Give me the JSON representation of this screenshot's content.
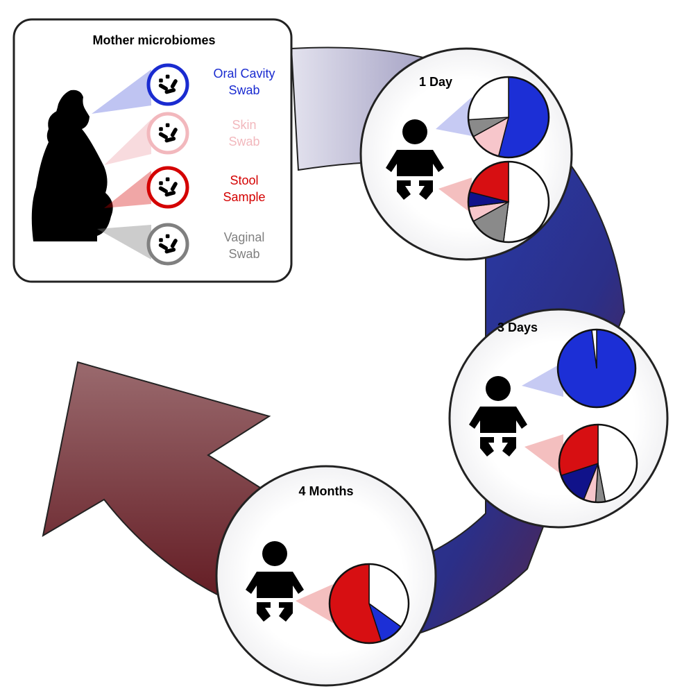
{
  "panel": {
    "title": "Mother microbiomes",
    "sources": [
      {
        "line1": "Oral Cavity",
        "line2": "Swab",
        "color": "#1a2bd0",
        "key": "oral"
      },
      {
        "line1": "Skin",
        "line2": "Swab",
        "color": "#f2b8bd",
        "key": "skin"
      },
      {
        "line1": "Stool",
        "line2": "Sample",
        "color": "#d40000",
        "key": "stool"
      },
      {
        "line1": "Vaginal",
        "line2": "Swab",
        "color": "#808080",
        "key": "vaginal"
      }
    ]
  },
  "timepoints": [
    {
      "label": "1 Day"
    },
    {
      "label": "3 Days"
    },
    {
      "label": "4 Months"
    }
  ],
  "colors": {
    "oral": "#1c2fd6",
    "skin": "#f7c6cb",
    "stool": "#d70f12",
    "stool_dark": "#10128a",
    "vaginal": "#8a8a8a",
    "other": "#ffffff",
    "arrow_dark": "#6a1e24",
    "arrow_blue": "#1e2f9a"
  },
  "chart_data": [
    {
      "type": "pie",
      "name": "1 Day oral",
      "slices": [
        {
          "category": "oral",
          "value": 0.54
        },
        {
          "category": "skin",
          "value": 0.13
        },
        {
          "category": "vaginal",
          "value": 0.07
        },
        {
          "category": "other",
          "value": 0.26
        }
      ]
    },
    {
      "type": "pie",
      "name": "1 Day stool",
      "slices": [
        {
          "category": "other",
          "value": 0.52
        },
        {
          "category": "vaginal",
          "value": 0.15
        },
        {
          "category": "skin",
          "value": 0.06
        },
        {
          "category": "stool_dark",
          "value": 0.06
        },
        {
          "category": "stool",
          "value": 0.21
        }
      ]
    },
    {
      "type": "pie",
      "name": "3 Days oral",
      "slices": [
        {
          "category": "oral",
          "value": 0.98
        },
        {
          "category": "other",
          "value": 0.02
        }
      ]
    },
    {
      "type": "pie",
      "name": "3 Days stool",
      "slices": [
        {
          "category": "other",
          "value": 0.47
        },
        {
          "category": "vaginal",
          "value": 0.04
        },
        {
          "category": "skin",
          "value": 0.05
        },
        {
          "category": "stool_dark",
          "value": 0.14
        },
        {
          "category": "stool",
          "value": 0.3
        }
      ]
    },
    {
      "type": "pie",
      "name": "4 Months stool",
      "slices": [
        {
          "category": "other",
          "value": 0.35
        },
        {
          "category": "oral",
          "value": 0.1
        },
        {
          "category": "stool",
          "value": 0.55
        }
      ]
    }
  ]
}
